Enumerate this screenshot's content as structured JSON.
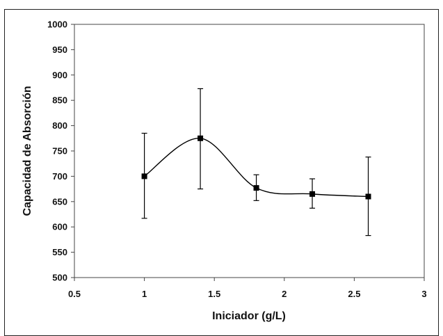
{
  "chart_data": {
    "type": "line",
    "title": "",
    "xlabel": "Iniciador (g/L)",
    "ylabel": "Capacidad de Absorción",
    "xlim": [
      0.5,
      3
    ],
    "ylim": [
      500,
      1000
    ],
    "x_ticks": [
      0.5,
      1,
      1.5,
      2,
      2.5,
      3
    ],
    "x_tick_labels": [
      "0.5",
      "1",
      "1.5",
      "2",
      "2.5",
      "3"
    ],
    "y_ticks": [
      500,
      550,
      600,
      650,
      700,
      750,
      800,
      850,
      900,
      950,
      1000
    ],
    "y_tick_labels": [
      "500",
      "550",
      "600",
      "650",
      "700",
      "750",
      "800",
      "850",
      "900",
      "950",
      "1000"
    ],
    "grid": false,
    "legend": "none",
    "smooth": true,
    "marker": "square",
    "line_color": "#000000",
    "series": [
      {
        "x": [
          1.0,
          1.4,
          1.8,
          2.2,
          2.6
        ],
        "y": [
          700,
          775,
          677,
          665,
          660
        ],
        "error_low": [
          617,
          675,
          652,
          637,
          583
        ],
        "error_high": [
          785,
          873,
          703,
          695,
          738
        ]
      }
    ]
  }
}
